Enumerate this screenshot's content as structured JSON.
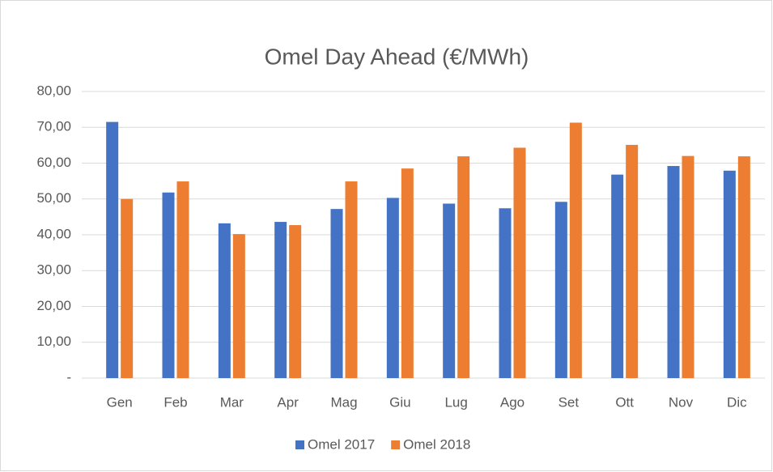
{
  "chart_data": {
    "type": "bar",
    "title": "Omel Day Ahead  (€/MWh)",
    "categories": [
      "Gen",
      "Feb",
      "Mar",
      "Apr",
      "Mag",
      "Giu",
      "Lug",
      "Ago",
      "Set",
      "Ott",
      "Nov",
      "Dic"
    ],
    "series": [
      {
        "name": "Omel 2017",
        "color": "#4472c4",
        "values": [
          71.5,
          51.8,
          43.2,
          43.6,
          47.2,
          50.3,
          48.7,
          47.4,
          49.2,
          56.8,
          59.2,
          57.9
        ]
      },
      {
        "name": "Omel 2018",
        "color": "#ed7d31",
        "values": [
          50.0,
          54.9,
          40.2,
          42.7,
          54.9,
          58.5,
          61.9,
          64.3,
          71.3,
          65.1,
          62.0,
          61.9
        ]
      }
    ],
    "ylim": [
      0,
      80
    ],
    "yticks": [
      {
        "value": 0,
        "label": "-"
      },
      {
        "value": 10,
        "label": "10,00"
      },
      {
        "value": 20,
        "label": "20,00"
      },
      {
        "value": 30,
        "label": "30,00"
      },
      {
        "value": 40,
        "label": "40,00"
      },
      {
        "value": 50,
        "label": "50,00"
      },
      {
        "value": 60,
        "label": "60,00"
      },
      {
        "value": 70,
        "label": "70,00"
      },
      {
        "value": 80,
        "label": "80,00"
      }
    ],
    "grid": true,
    "legend": "bottom"
  }
}
